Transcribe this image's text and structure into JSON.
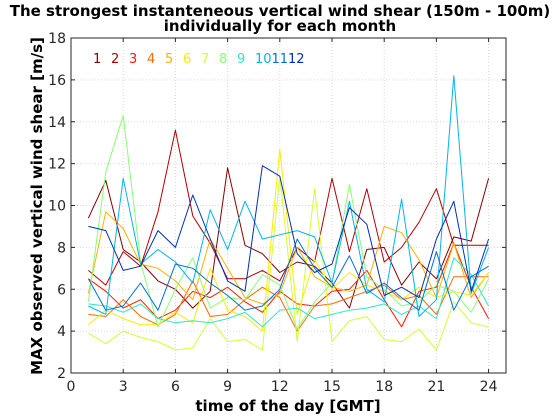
{
  "chart_data": {
    "type": "line",
    "title": [
      "The strongest instanteneous vertical wind shear (150m - 100m)",
      "individually for each month"
    ],
    "xlabel": "time of the day [GMT]",
    "ylabel": "MAX observed vertical wind shear [m/s]",
    "xlim": [
      0,
      25
    ],
    "ylim": [
      2,
      18
    ],
    "xticks": [
      0,
      3,
      6,
      9,
      12,
      15,
      18,
      21,
      24
    ],
    "yticks": [
      2,
      4,
      6,
      8,
      10,
      12,
      14,
      16,
      18
    ],
    "grid": true,
    "legend_placement": "top-left",
    "x": [
      1,
      2,
      3,
      4,
      5,
      6,
      7,
      8,
      9,
      10,
      11,
      12,
      13,
      14,
      15,
      16,
      17,
      18,
      19,
      20,
      21,
      22,
      23,
      24
    ],
    "series": [
      {
        "name": "1",
        "color": "#800000",
        "values": [
          9.4,
          11.2,
          7.9,
          7.3,
          6.4,
          6.0,
          5.1,
          5.9,
          11.8,
          8.1,
          7.7,
          6.8,
          7.3,
          7.1,
          6.3,
          5.1,
          7.9,
          8.0,
          6.2,
          7.3,
          6.5,
          8.5,
          8.3,
          11.3
        ]
      },
      {
        "name": "2",
        "color": "#b40000",
        "values": [
          6.9,
          6.2,
          7.8,
          7.1,
          9.7,
          13.6,
          9.5,
          8.2,
          6.5,
          6.5,
          6.9,
          6.4,
          8.0,
          7.3,
          11.3,
          7.8,
          10.8,
          7.3,
          8.0,
          9.2,
          10.8,
          8.1,
          8.1,
          8.1
        ]
      },
      {
        "name": "3",
        "color": "#ff1a00",
        "values": [
          6.5,
          5.9,
          5.1,
          5.5,
          4.6,
          5.0,
          5.9,
          5.6,
          6.1,
          5.4,
          4.9,
          5.9,
          5.3,
          5.2,
          5.9,
          6.0,
          6.9,
          5.5,
          4.2,
          5.9,
          6.1,
          8.2,
          6.1,
          4.6
        ]
      },
      {
        "name": "4",
        "color": "#ff6a00",
        "values": [
          4.8,
          4.7,
          5.5,
          4.7,
          4.3,
          4.8,
          6.4,
          4.7,
          4.8,
          5.5,
          6.1,
          5.6,
          4.0,
          5.2,
          5.3,
          5.6,
          5.9,
          6.2,
          5.5,
          5.7,
          4.8,
          6.6,
          6.6,
          6.6
        ]
      },
      {
        "name": "5",
        "color": "#ffb000",
        "values": [
          5.8,
          9.7,
          8.9,
          7.2,
          7.0,
          6.4,
          5.5,
          8.4,
          7.0,
          5.6,
          5.3,
          5.8,
          8.0,
          6.6,
          6.1,
          5.9,
          6.2,
          9.0,
          8.7,
          7.4,
          5.6,
          8.2,
          5.6,
          6.8
        ]
      },
      {
        "name": "6",
        "color": "#ffea00",
        "values": [
          4.3,
          5.0,
          4.6,
          4.3,
          4.3,
          4.9,
          4.4,
          7.0,
          5.0,
          4.7,
          4.0,
          12.7,
          4.8,
          7.4,
          6.0,
          6.8,
          6.2,
          5.9,
          5.5,
          6.1,
          5.6,
          5.9,
          5.7,
          6.8
        ]
      },
      {
        "name": "7",
        "color": "#d4ff2e",
        "values": [
          3.9,
          3.4,
          4.0,
          3.7,
          3.5,
          3.1,
          3.2,
          4.6,
          3.5,
          3.6,
          3.1,
          11.4,
          3.5,
          10.8,
          3.5,
          4.5,
          4.7,
          3.6,
          3.5,
          4.1,
          3.1,
          5.4,
          4.4,
          4.2
        ]
      },
      {
        "name": "8",
        "color": "#8aff74",
        "values": [
          5.4,
          11.6,
          14.3,
          7.3,
          4.2,
          6.0,
          7.5,
          5.1,
          5.6,
          5.5,
          6.7,
          6.2,
          4.1,
          5.4,
          6.3,
          11.0,
          6.6,
          6.0,
          5.2,
          5.4,
          6.2,
          5.9,
          4.9,
          6.5
        ]
      },
      {
        "name": "9",
        "color": "#2ee6c8",
        "values": [
          5.3,
          5.2,
          4.9,
          5.3,
          4.6,
          4.4,
          4.5,
          4.4,
          4.6,
          4.9,
          4.2,
          5.0,
          5.1,
          4.6,
          4.8,
          5.0,
          5.1,
          5.3,
          4.8,
          5.2,
          4.6,
          7.5,
          6.7,
          5.2
        ]
      },
      {
        "name": "10",
        "color": "#00b4f0",
        "values": [
          5.2,
          4.8,
          11.3,
          7.2,
          7.9,
          7.3,
          6.3,
          9.8,
          7.9,
          10.2,
          8.4,
          8.6,
          8.8,
          8.5,
          6.3,
          10.2,
          6.0,
          5.4,
          10.3,
          4.7,
          5.5,
          16.2,
          5.8,
          8.0
        ]
      },
      {
        "name": "11",
        "color": "#0070d8",
        "values": [
          6.5,
          5.0,
          5.2,
          6.3,
          5.0,
          7.2,
          7.0,
          6.3,
          5.7,
          5.0,
          5.2,
          6.0,
          8.4,
          7.0,
          6.1,
          7.6,
          5.8,
          6.3,
          5.6,
          5.0,
          7.8,
          5.0,
          6.6,
          7.1
        ]
      },
      {
        "name": "12",
        "color": "#0030b0",
        "values": [
          9.0,
          8.8,
          6.9,
          7.1,
          8.8,
          8.0,
          10.5,
          8.4,
          6.4,
          5.9,
          11.9,
          11.4,
          7.7,
          6.8,
          7.2,
          9.9,
          9.1,
          5.7,
          6.1,
          5.6,
          8.4,
          10.2,
          5.9,
          8.4
        ]
      }
    ]
  }
}
